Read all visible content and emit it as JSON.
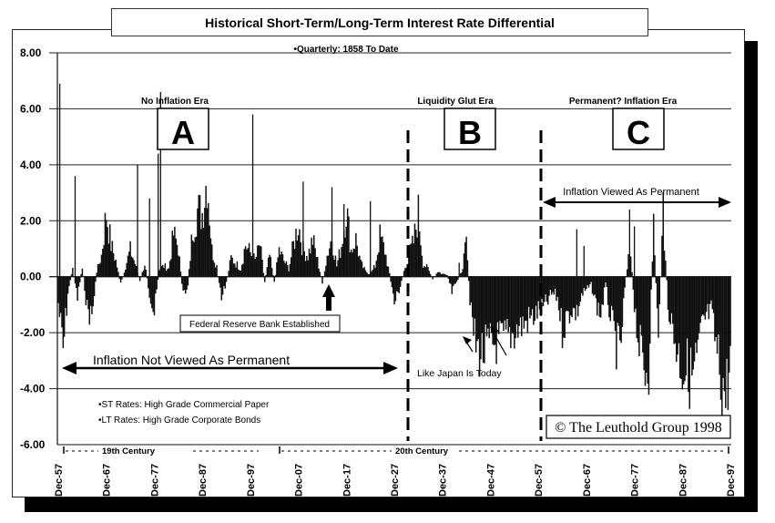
{
  "chart_data": {
    "type": "bar",
    "title": "Historical Short-Term/Long-Term Interest Rate Differential",
    "subtitle": "•Quarterly: 1858 To Date",
    "xlabel": "",
    "ylabel": "",
    "ylim": [
      -6,
      8
    ],
    "yticks": [
      "8.00",
      "6.00",
      "4.00",
      "2.00",
      "0.00",
      "-2.00",
      "-4.00",
      "-6.00"
    ],
    "xticks": [
      "Dec-57",
      "Dec-67",
      "Dec-77",
      "Dec-87",
      "Dec-97",
      "Dec-07",
      "Dec-17",
      "Dec-27",
      "Dec-37",
      "Dec-47",
      "Dec-57",
      "Dec-67",
      "Dec-77",
      "Dec-87",
      "Dec-97"
    ],
    "grid": true,
    "x_start_year": 1857,
    "x_end_year": 1997,
    "annual_values": [
      -1.0,
      -2.8,
      -0.6,
      0.3,
      -0.8,
      0.4,
      -1.2,
      -1.5,
      0.2,
      0.8,
      2.4,
      1.2,
      0.6,
      -0.3,
      0.4,
      1.0,
      0.5,
      -0.2,
      0.5,
      -0.6,
      -1.4,
      0.3,
      0.4,
      0.3,
      1.6,
      1.1,
      -0.8,
      -0.3,
      1.8,
      2.5,
      2.4,
      3.8,
      1.0,
      0.4,
      -0.9,
      -0.2,
      0.7,
      0.5,
      0.3,
      1.2,
      0.9,
      0.6,
      1.2,
      -0.2,
      0.8,
      -0.2,
      1.0,
      0.6,
      0.3,
      1.2,
      2.0,
      1.0,
      0.8,
      1.4,
      0.6,
      -0.2,
      0.8,
      1.5,
      0.4,
      1.2,
      2.6,
      1.0,
      1.4,
      0.5,
      0.2,
      0.1,
      0.4,
      1.5,
      1.0,
      0.1,
      -1.0,
      -0.5,
      0.2,
      0.8,
      1.3,
      2.4,
      0.5,
      0.3,
      -0.1,
      0.2,
      0.1,
      0.1,
      -0.6,
      -0.2,
      0.2,
      1.2,
      -1.5,
      -2.6,
      -2.9,
      -2.8,
      -2.6,
      -2.5,
      -2.4,
      -2.3,
      -2.2,
      -2.1,
      -1.9,
      -1.8,
      -1.6,
      -1.5,
      -1.3,
      -1.2,
      -0.9,
      -0.6,
      -0.8,
      -2.0,
      -1.5,
      -1.2,
      -1.4,
      -0.7,
      -0.5,
      -0.3,
      -1.0,
      -1.4,
      -0.3,
      -1.5,
      -2.4,
      -3.0,
      -0.5,
      1.3,
      -1.0,
      -2.6,
      -3.5,
      -3.3,
      2.1,
      -2.5,
      2.4,
      -1.0,
      -2.0,
      -2.8,
      -3.4,
      -3.5,
      -3.8,
      -3.2,
      -2.0,
      -1.5,
      -1.3,
      -2.6,
      -3.7,
      -4.5,
      -3.2,
      -2.4,
      -2.0,
      -1.3,
      -1.0
    ],
    "spikes": [
      {
        "year": 1857.3,
        "value": 6.9
      },
      {
        "year": 1860.5,
        "value": 3.6
      },
      {
        "year": 1873.5,
        "value": 4.0
      },
      {
        "year": 1876.0,
        "value": 2.8
      },
      {
        "year": 1877.8,
        "value": 4.4
      },
      {
        "year": 1878.3,
        "value": 6.6
      },
      {
        "year": 1897.5,
        "value": 5.8
      },
      {
        "year": 1908.0,
        "value": 3.4
      },
      {
        "year": 1914.0,
        "value": 3.2
      },
      {
        "year": 1916.5,
        "value": 2.6
      },
      {
        "year": 1922.0,
        "value": 2.7
      },
      {
        "year": 1940.5,
        "value": 0.5
      },
      {
        "year": 1965.0,
        "value": 1.7
      },
      {
        "year": 1966.5,
        "value": 1.1
      },
      {
        "year": 1976.0,
        "value": 2.4
      },
      {
        "year": 1977.0,
        "value": 1.8
      }
    ],
    "era_boundaries": [
      1930.5,
      1957.5
    ],
    "annotations": [
      {
        "text": "No Inflation Era",
        "era": "A"
      },
      {
        "text": "Liquidity Glut Era",
        "era": "B"
      },
      {
        "text": "Permanent? Inflation Era",
        "era": "C"
      },
      {
        "text": "Inflation Not Viewed As Permanent",
        "type": "double-arrow"
      },
      {
        "text": "Inflation Viewed As Permanent",
        "type": "double-arrow"
      },
      {
        "text": "Federal Reserve Bank Established",
        "type": "arrow-up",
        "year": 1913
      },
      {
        "text": "Like Japan Is Today",
        "type": "arrows"
      },
      {
        "text": "•ST Rates: High Grade Commercial Paper"
      },
      {
        "text": "•LT Rates: High Grade Corporate Bonds"
      }
    ],
    "century_labels": [
      "19th Century",
      "20th Century"
    ],
    "copyright": "© The Leuthold Group 1998"
  },
  "header": {
    "title": "Historical Short-Term/Long-Term Interest Rate Differential",
    "subtitle": "•Quarterly: 1858 To Date"
  },
  "eras": {
    "a_label": "No Inflation Era",
    "a_letter": "A",
    "b_label": "Liquidity Glut Era",
    "b_letter": "B",
    "c_label": "Permanent? Inflation Era",
    "c_letter": "C"
  },
  "annotations": {
    "fed": "Federal Reserve Bank Established",
    "not_permanent": "Inflation Not Viewed As Permanent",
    "permanent": "Inflation Viewed As Permanent",
    "japan": "Like Japan Is Today",
    "st_rates": "•ST Rates: High Grade Commercial Paper",
    "lt_rates": "•LT Rates: High Grade Corporate Bonds",
    "century19": "19th Century",
    "century20": "20th Century",
    "copyright": "© The Leuthold Group 1998"
  },
  "colors": {
    "bars": "#111111",
    "grid": "#222222",
    "background": "#ffffff"
  }
}
